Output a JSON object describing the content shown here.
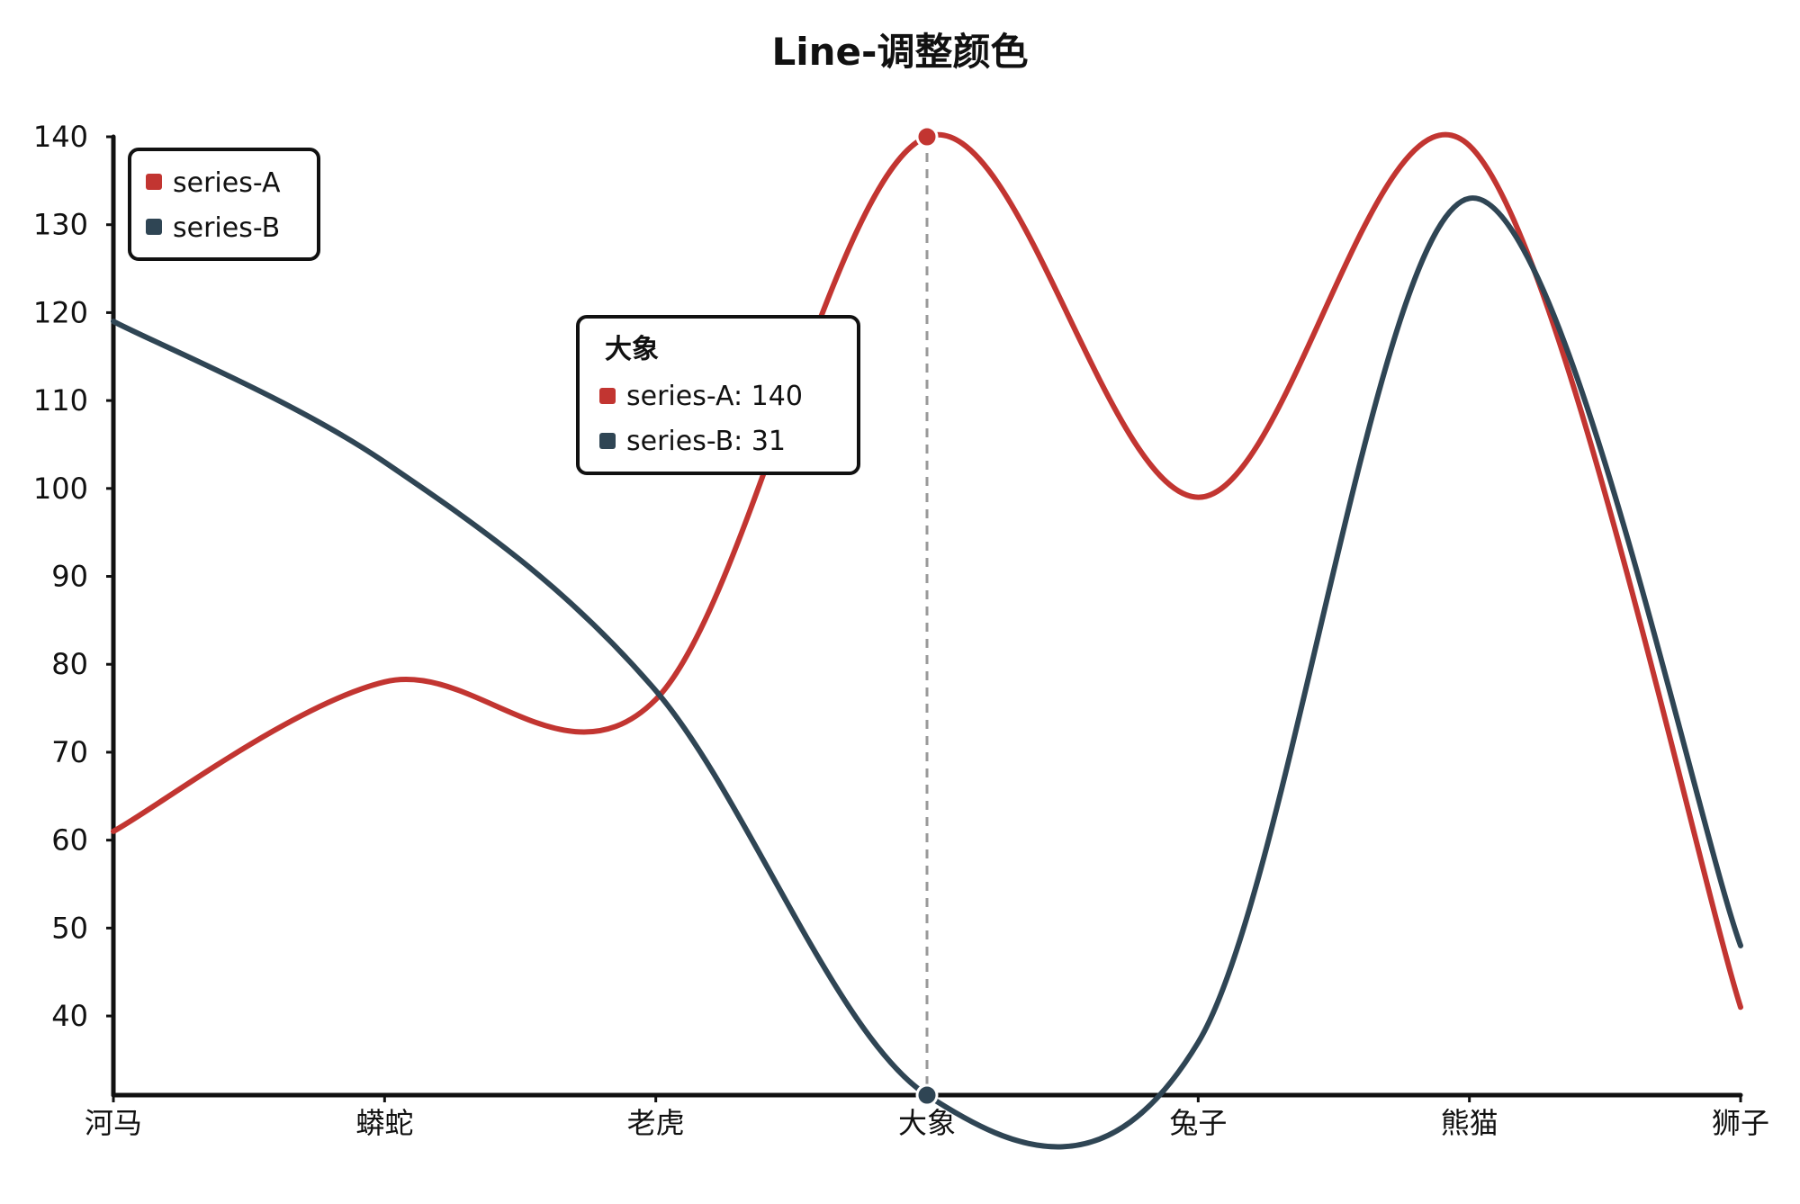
{
  "chart_data": {
    "type": "line",
    "title": "Line-调整颜色",
    "categories": [
      "河马",
      "蟒蛇",
      "老虎",
      "大象",
      "兔子",
      "熊猫",
      "狮子"
    ],
    "series": [
      {
        "name": "series-A",
        "color": "#c23531",
        "values": [
          61,
          78,
          76,
          140,
          99,
          139,
          41
        ]
      },
      {
        "name": "series-B",
        "color": "#2f4554",
        "values": [
          119,
          103,
          77,
          31,
          37,
          133,
          48
        ]
      }
    ],
    "y_ticks": [
      40,
      50,
      60,
      70,
      80,
      90,
      100,
      110,
      120,
      130,
      140
    ],
    "ylim": [
      31,
      140
    ],
    "legend": {
      "position": "top-left",
      "items": [
        "series-A",
        "series-B"
      ]
    },
    "tooltip": {
      "category": "大象",
      "lines": [
        "series-A: 140",
        "series-B: 31"
      ]
    },
    "grid": false
  }
}
